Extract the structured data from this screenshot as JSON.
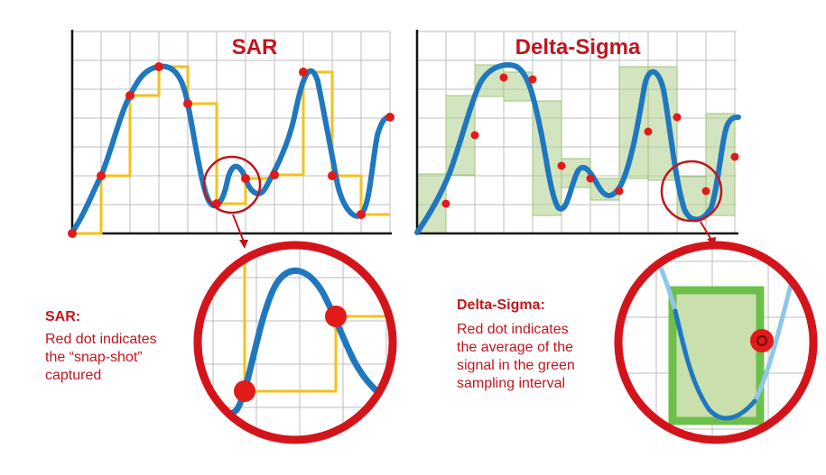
{
  "titles": {
    "sar": "SAR",
    "delta_sigma": "Delta-Sigma"
  },
  "captions": {
    "sar_heading": "SAR:",
    "sar_body": "Red dot indicates\nthe “snap-shot”\ncaptured",
    "ds_heading": "Delta-Sigma:",
    "ds_body": "Red dot indicates\nthe average of the\nsignal in the green\nsampling interval"
  },
  "colors": {
    "signal": "#1f78bf",
    "signal_light": "#8ec6ec",
    "sar_steps": "#f2c21b",
    "sample_dot": "#e21a1a",
    "highlight_ring": "#c0161e",
    "ds_interval_fill": "#cfe0b4",
    "ds_interval_border": "#6cc04a",
    "grid": "#bdbdbd",
    "axis": "#111111"
  }
}
